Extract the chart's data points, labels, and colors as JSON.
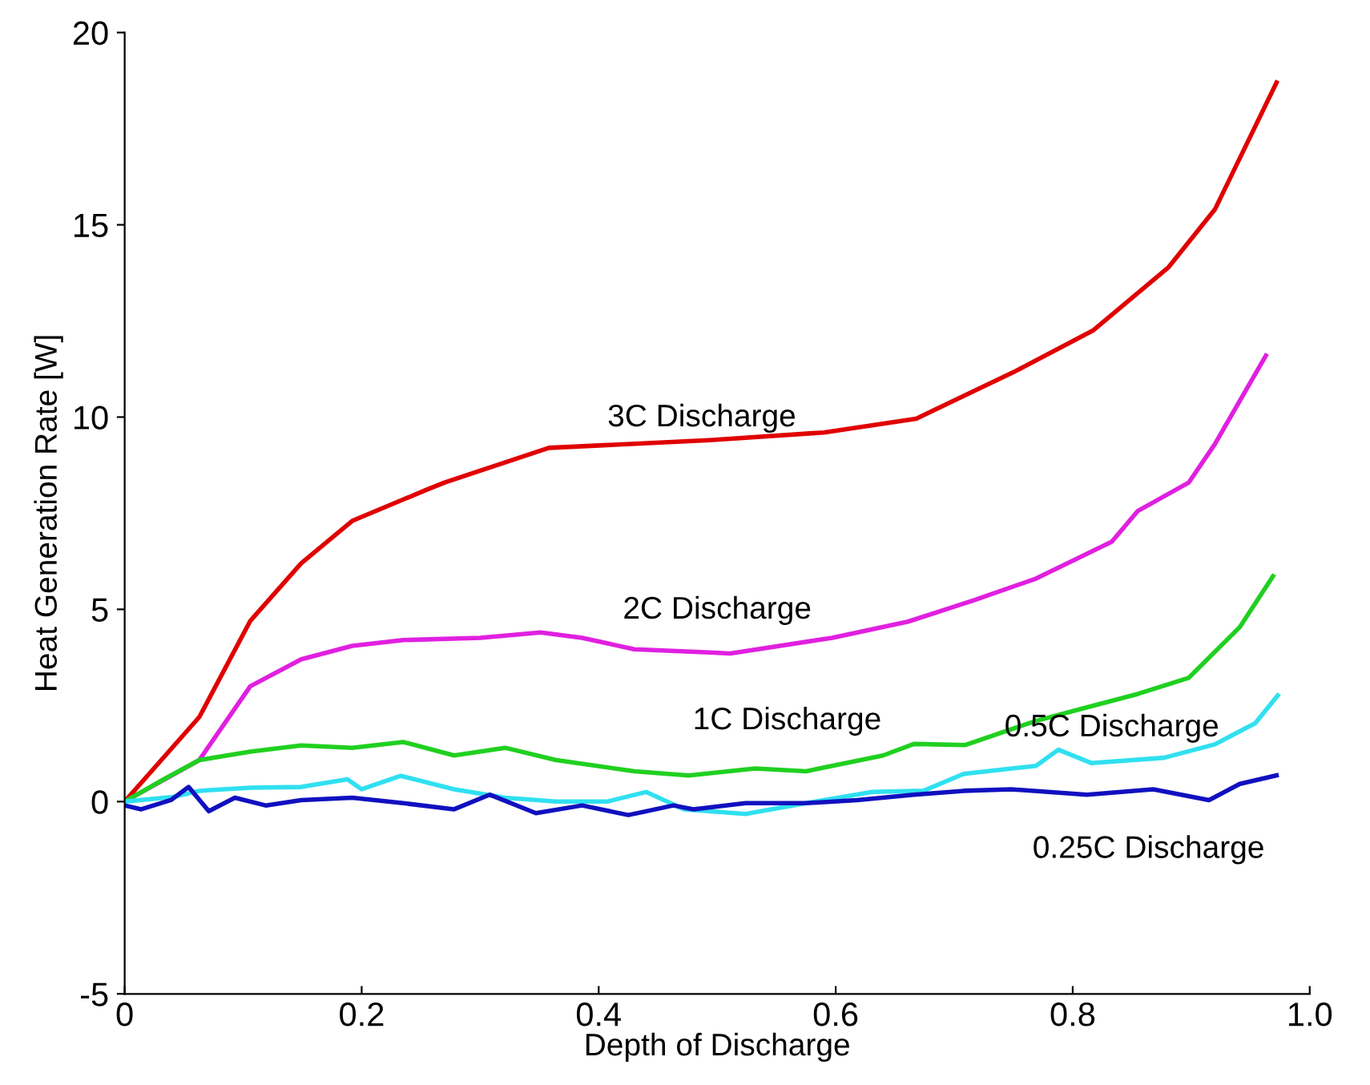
{
  "chart_data": {
    "type": "line",
    "xlabel": "Depth of Discharge",
    "ylabel": "Heat Generation Rate [W]",
    "xlim": [
      0,
      1.0
    ],
    "xticks": [
      0,
      0.2,
      0.4,
      0.6,
      0.8,
      {
        "value": 1.0,
        "label": "1.0"
      }
    ],
    "ylim": [
      -5,
      20
    ],
    "yticks": [
      -5,
      0,
      5,
      10,
      15,
      20
    ],
    "grid": false,
    "series": [
      {
        "name": "3C Discharge",
        "color": "#e00000",
        "x": [
          0,
          0.063,
          0.106,
          0.149,
          0.192,
          0.254,
          0.27,
          0.358,
          0.494,
          0.59,
          0.668,
          0.752,
          0.817,
          0.881,
          0.92,
          0.972
        ],
        "values": [
          0,
          2.2,
          4.7,
          6.2,
          7.3,
          8.1,
          8.3,
          9.2,
          9.4,
          9.6,
          9.96,
          11.2,
          12.25,
          13.9,
          15.4,
          18.7
        ]
      },
      {
        "name": "2C Discharge",
        "color": "#e020e0",
        "x": [
          0,
          0.063,
          0.106,
          0.149,
          0.192,
          0.235,
          0.3,
          0.351,
          0.386,
          0.43,
          0.494,
          0.511,
          0.597,
          0.661,
          0.717,
          0.769,
          0.833,
          0.855,
          0.898,
          0.92,
          0.963
        ],
        "values": [
          0,
          1.08,
          3.0,
          3.7,
          4.05,
          4.2,
          4.26,
          4.4,
          4.26,
          3.96,
          3.88,
          3.85,
          4.26,
          4.68,
          5.24,
          5.8,
          6.76,
          7.56,
          8.3,
          9.3,
          11.6
        ]
      },
      {
        "name": "1C Discharge",
        "color": "#20d020",
        "x": [
          0,
          0.033,
          0.063,
          0.106,
          0.149,
          0.192,
          0.235,
          0.278,
          0.321,
          0.364,
          0.43,
          0.476,
          0.532,
          0.575,
          0.64,
          0.666,
          0.709,
          0.769,
          0.812,
          0.855,
          0.898,
          0.941,
          0.969
        ],
        "values": [
          0,
          0.58,
          1.08,
          1.3,
          1.46,
          1.4,
          1.55,
          1.2,
          1.4,
          1.08,
          0.79,
          0.68,
          0.86,
          0.79,
          1.2,
          1.5,
          1.47,
          2.1,
          2.45,
          2.8,
          3.22,
          4.54,
          5.86
        ]
      },
      {
        "name": "0.5C Discharge",
        "color": "#30e0f0",
        "x": [
          0,
          0.041,
          0.063,
          0.106,
          0.149,
          0.188,
          0.2,
          0.233,
          0.278,
          0.321,
          0.364,
          0.407,
          0.44,
          0.472,
          0.524,
          0.575,
          0.631,
          0.674,
          0.708,
          0.769,
          0.788,
          0.816,
          0.877,
          0.92,
          0.954,
          0.973
        ],
        "values": [
          0,
          0.12,
          0.28,
          0.36,
          0.38,
          0.58,
          0.32,
          0.67,
          0.32,
          0.1,
          0,
          0,
          0.25,
          -0.2,
          -0.32,
          -0.04,
          0.25,
          0.28,
          0.72,
          0.93,
          1.35,
          1.0,
          1.14,
          1.49,
          2.04,
          2.76
        ]
      },
      {
        "name": "0.25C Discharge",
        "color": "#1010c0",
        "x": [
          0,
          0.014,
          0.039,
          0.054,
          0.071,
          0.093,
          0.119,
          0.149,
          0.192,
          0.235,
          0.278,
          0.308,
          0.347,
          0.386,
          0.425,
          0.463,
          0.48,
          0.524,
          0.575,
          0.618,
          0.666,
          0.708,
          0.748,
          0.812,
          0.868,
          0.915,
          0.941,
          0.972
        ],
        "values": [
          -0.1,
          -0.2,
          0.04,
          0.38,
          -0.25,
          0.1,
          -0.1,
          0.04,
          0.1,
          -0.04,
          -0.2,
          0.18,
          -0.3,
          -0.1,
          -0.35,
          -0.1,
          -0.2,
          -0.04,
          -0.04,
          0.04,
          0.18,
          0.28,
          0.32,
          0.18,
          0.32,
          0.04,
          0.46,
          0.68
        ]
      }
    ]
  }
}
